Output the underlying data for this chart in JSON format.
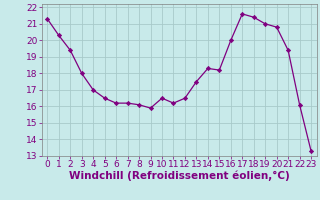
{
  "x": [
    0,
    1,
    2,
    3,
    4,
    5,
    6,
    7,
    8,
    9,
    10,
    11,
    12,
    13,
    14,
    15,
    16,
    17,
    18,
    19,
    20,
    21,
    22,
    23
  ],
  "y": [
    21.3,
    20.3,
    19.4,
    18.0,
    17.0,
    16.5,
    16.2,
    16.2,
    16.1,
    15.9,
    16.5,
    16.2,
    16.5,
    17.5,
    18.3,
    18.2,
    20.0,
    21.6,
    21.4,
    21.0,
    20.8,
    19.4,
    16.1,
    13.3
  ],
  "line_color": "#800080",
  "marker": "D",
  "marker_size": 2.2,
  "bg_color": "#c8eaea",
  "grid_color": "#a8caca",
  "xlabel": "Windchill (Refroidissement éolien,°C)",
  "ylim": [
    13,
    22
  ],
  "xlim": [
    -0.5,
    23.5
  ],
  "yticks": [
    13,
    14,
    15,
    16,
    17,
    18,
    19,
    20,
    21,
    22
  ],
  "xticks": [
    0,
    1,
    2,
    3,
    4,
    5,
    6,
    7,
    8,
    9,
    10,
    11,
    12,
    13,
    14,
    15,
    16,
    17,
    18,
    19,
    20,
    21,
    22,
    23
  ],
  "tick_color": "#800080",
  "tick_fontsize": 6.5,
  "xlabel_fontsize": 7.5,
  "label_color": "#800080"
}
